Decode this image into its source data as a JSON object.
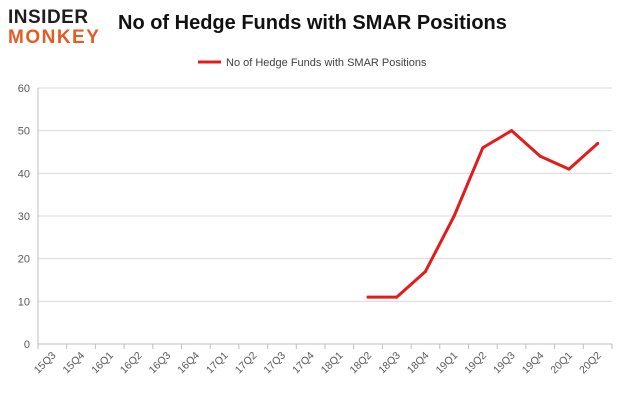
{
  "logo": {
    "line1": "INSIDER",
    "line2": "MONKEY"
  },
  "colors": {
    "series": "#e31b1b",
    "grid": "#d9d9d9",
    "axis": "#bfbfbf",
    "tick_text": "#595959",
    "logo_dark": "#1e1e1e",
    "logo_orange": "#e25d24"
  },
  "chart_data": {
    "type": "line",
    "title": "No of Hedge Funds with SMAR Positions",
    "xlabel": "",
    "ylabel": "",
    "categories": [
      "15Q3",
      "15Q4",
      "16Q1",
      "16Q2",
      "16Q3",
      "16Q4",
      "17Q1",
      "17Q2",
      "17Q3",
      "17Q4",
      "18Q1",
      "18Q2",
      "18Q3",
      "18Q4",
      "19Q1",
      "19Q2",
      "19Q3",
      "19Q4",
      "20Q1",
      "20Q2"
    ],
    "series": [
      {
        "name": "No of Hedge Funds with SMAR Positions",
        "values": [
          null,
          null,
          null,
          null,
          null,
          null,
          null,
          null,
          null,
          null,
          null,
          11,
          11,
          17,
          30,
          46,
          50,
          44,
          41,
          47
        ]
      }
    ],
    "ylim": [
      0,
      60
    ],
    "yticks": [
      0,
      10,
      20,
      30,
      40,
      50,
      60
    ],
    "grid": true,
    "legend_position": "top-center"
  }
}
